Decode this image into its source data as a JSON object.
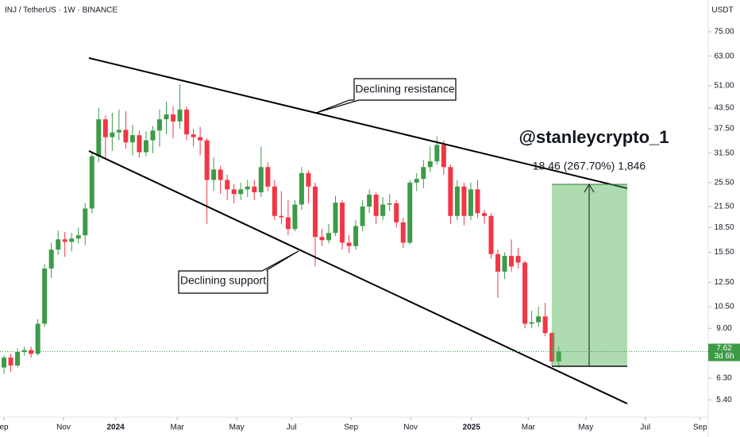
{
  "chart_data": {
    "type": "candlestick",
    "title": "INJ / TetherUS · 1W · BINANCE",
    "y_unit": "USDT",
    "up_color": "#3d9b47",
    "down_color": "#f23645",
    "log_scale": true,
    "open": [
      6.8,
      7.3,
      6.9,
      7.6,
      7.7,
      7.5,
      9.3,
      13.8,
      15.8,
      17.0,
      16.7,
      17.1,
      17.5,
      21.2,
      30.8,
      40.1,
      35.3,
      36.5,
      37.2,
      34.0,
      35.8,
      31.7,
      34.5,
      37.0,
      40.1,
      41.5,
      39.5,
      43.0,
      36.0,
      35.3,
      34.5,
      26.0,
      28.0,
      26.0,
      24.3,
      23.5,
      24.3,
      24.8,
      23.8,
      28.5,
      24.8,
      20.1,
      19.9,
      18.3,
      21.8,
      27.3,
      24.8,
      17.3,
      16.9,
      17.8,
      22.1,
      16.6,
      16.2,
      18.7,
      21.5,
      23.4,
      20.1,
      21.8,
      22.0,
      19.2,
      16.6,
      25.5,
      26.2,
      28.5,
      29.7,
      33.4,
      28.5,
      20.1,
      24.8,
      20.1,
      24.3,
      20.5,
      20.1,
      15.3,
      13.5,
      15.1,
      15.1,
      14.4,
      9.3,
      9.4,
      9.8,
      8.7,
      7.1
    ],
    "high": [
      7.4,
      7.5,
      7.8,
      7.9,
      7.9,
      9.6,
      14.2,
      16.6,
      18.1,
      17.9,
      17.8,
      18.5,
      22.0,
      31.5,
      43.5,
      41.2,
      42.0,
      43.0,
      42.5,
      38.5,
      37.0,
      36.8,
      38.2,
      43.0,
      45.5,
      44.0,
      51.5,
      44.0,
      37.5,
      38.0,
      35.0,
      30.5,
      28.8,
      27.0,
      25.2,
      25.5,
      26.0,
      26.0,
      33.0,
      29.5,
      26.0,
      24.0,
      22.5,
      22.5,
      28.5,
      27.8,
      25.5,
      18.3,
      19.0,
      23.2,
      22.5,
      17.5,
      19.5,
      22.5,
      24.3,
      23.8,
      23.0,
      23.5,
      22.5,
      19.8,
      26.0,
      27.3,
      30.0,
      33.0,
      35.5,
      34.5,
      29.0,
      26.0,
      25.5,
      25.5,
      26.0,
      21.0,
      20.5,
      15.8,
      15.5,
      17.0,
      16.0,
      14.6,
      10.2,
      10.5,
      10.8,
      8.8,
      7.9
    ],
    "low": [
      6.5,
      6.6,
      6.8,
      7.4,
      7.3,
      7.4,
      9.1,
      12.9,
      15.2,
      15.0,
      15.6,
      16.5,
      16.3,
      20.5,
      29.5,
      30.5,
      32.0,
      34.5,
      32.5,
      31.0,
      30.5,
      30.8,
      31.5,
      33.0,
      36.0,
      35.0,
      37.5,
      34.5,
      33.0,
      31.0,
      19.0,
      24.0,
      23.5,
      22.5,
      22.0,
      22.5,
      23.0,
      22.5,
      23.0,
      24.0,
      19.5,
      19.0,
      17.5,
      18.0,
      21.0,
      22.0,
      14.0,
      16.2,
      16.5,
      17.4,
      15.8,
      15.4,
      15.8,
      18.0,
      20.5,
      19.0,
      19.5,
      20.8,
      18.5,
      16.0,
      16.4,
      24.0,
      24.5,
      27.5,
      29.0,
      27.0,
      19.0,
      19.5,
      18.8,
      19.5,
      19.8,
      19.0,
      14.8,
      11.2,
      12.8,
      13.5,
      13.8,
      9.0,
      9.0,
      9.1,
      8.5,
      6.9,
      6.8
    ],
    "close": [
      7.3,
      6.9,
      7.6,
      7.7,
      7.5,
      9.3,
      13.8,
      15.8,
      17.0,
      16.7,
      17.1,
      17.5,
      21.2,
      30.8,
      40.1,
      35.3,
      36.5,
      37.2,
      34.0,
      35.8,
      31.7,
      34.5,
      37.0,
      40.1,
      41.5,
      39.5,
      43.0,
      36.0,
      35.3,
      34.5,
      26.0,
      28.0,
      26.0,
      24.3,
      23.5,
      24.3,
      24.8,
      23.8,
      28.5,
      24.8,
      20.1,
      19.9,
      18.3,
      21.8,
      27.3,
      24.8,
      17.3,
      16.9,
      17.8,
      22.1,
      16.6,
      16.2,
      18.7,
      21.5,
      23.4,
      20.1,
      21.8,
      22.0,
      19.2,
      16.6,
      25.5,
      26.2,
      28.5,
      29.7,
      33.4,
      28.5,
      20.1,
      24.8,
      20.1,
      24.3,
      20.5,
      20.1,
      15.3,
      13.5,
      15.1,
      14.0,
      14.4,
      9.3,
      9.4,
      9.8,
      8.7,
      7.1,
      7.62
    ],
    "xlim": [
      -0.59,
      104.1
    ],
    "xticks": [
      {
        "value": 0,
        "label": "ep"
      },
      {
        "value": 8.8,
        "label": "Nov"
      },
      {
        "value": 16.5,
        "label": "2024"
      },
      {
        "value": 25.6,
        "label": "Mar"
      },
      {
        "value": 34.4,
        "label": "May"
      },
      {
        "value": 42.5,
        "label": "Jul"
      },
      {
        "value": 51.3,
        "label": "Sep"
      },
      {
        "value": 60.1,
        "label": "Nov"
      },
      {
        "value": 69.1,
        "label": "2025"
      },
      {
        "value": 77.5,
        "label": "Mar"
      },
      {
        "value": 86,
        "label": "May"
      },
      {
        "value": 94.8,
        "label": "Jul"
      },
      {
        "value": 102.9,
        "label": "Sep"
      }
    ],
    "ylim": [
      4.77,
      94.1
    ],
    "yticks": [
      {
        "value": 75,
        "label": "75.00"
      },
      {
        "value": 63,
        "label": "63.00"
      },
      {
        "value": 51,
        "label": "51.00"
      },
      {
        "value": 43.5,
        "label": "43.50"
      },
      {
        "value": 37.5,
        "label": "37.50"
      },
      {
        "value": 31.5,
        "label": "31.50"
      },
      {
        "value": 25.5,
        "label": "25.50"
      },
      {
        "value": 21.5,
        "label": "21.50"
      },
      {
        "value": 18.5,
        "label": "18.50"
      },
      {
        "value": 15.5,
        "label": "15.50"
      },
      {
        "value": 12.5,
        "label": "12.50"
      },
      {
        "value": 10.5,
        "label": "10.50"
      },
      {
        "value": 9,
        "label": "9.00"
      },
      {
        "value": 6.3,
        "label": "6.30"
      },
      {
        "value": 5.4,
        "label": "5.40"
      }
    ],
    "last_price": {
      "value": 7.62,
      "label": "7.62"
    },
    "countdown": "3d 6h",
    "annotations": [
      "Declining resistance",
      "Declining support",
      "@stanleycrypto_1",
      "18.46 (267.70%) 1,846"
    ]
  }
}
